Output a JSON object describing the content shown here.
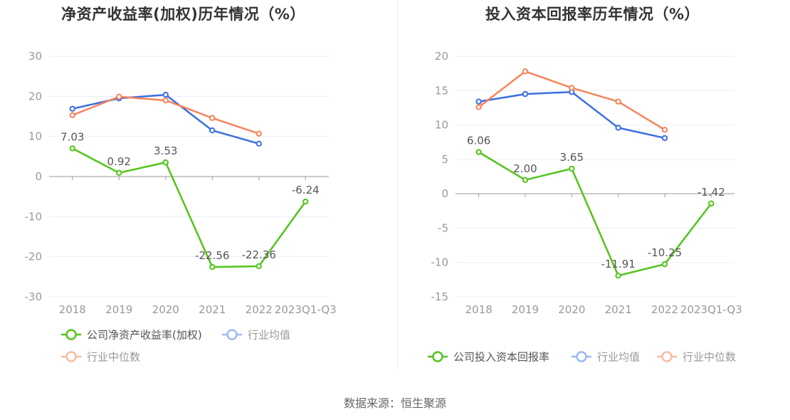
{
  "source_label": "数据来源：恒生聚源",
  "colors": {
    "company": "#52c41a",
    "industry_avg": "#3a6fe0",
    "industry_median": "#f5845a",
    "legend_avg_faded": "#9bb8f3",
    "legend_median_faded": "#f9bba3",
    "axis_text": "#999999",
    "grid": "#e8edf6",
    "axis_line": "#999999"
  },
  "chart_data": [
    {
      "type": "line",
      "title": "净资产收益率(加权)历年情况（%）",
      "categories": [
        "2018",
        "2019",
        "2020",
        "2021",
        "2022",
        "2023Q1-Q3"
      ],
      "ylim": [
        -30,
        30
      ],
      "yticks": [
        30,
        20,
        10,
        0,
        -10,
        -20,
        -30
      ],
      "grid": true,
      "legend_placement": "bottom",
      "series": [
        {
          "name": "公司净资产收益率(加权)",
          "key": "company",
          "values": [
            7.03,
            0.92,
            3.53,
            -22.56,
            -22.36,
            -6.24
          ],
          "labels": [
            "7.03",
            "0.92",
            "3.53",
            "-22.56",
            "-22.36",
            "-6.24"
          ]
        },
        {
          "name": "行业均值",
          "key": "industry_avg",
          "values": [
            16.9,
            19.5,
            20.4,
            11.5,
            8.2,
            null
          ]
        },
        {
          "name": "行业中位数",
          "key": "industry_median",
          "values": [
            15.3,
            19.9,
            19.0,
            14.6,
            10.7,
            null
          ]
        }
      ]
    },
    {
      "type": "line",
      "title": "投入资本回报率历年情况（%）",
      "categories": [
        "2018",
        "2019",
        "2020",
        "2021",
        "2022",
        "2023Q1-Q3"
      ],
      "ylim": [
        -15,
        20
      ],
      "yticks": [
        20,
        15,
        10,
        5,
        0,
        -5,
        -10,
        -15
      ],
      "grid": true,
      "legend_placement": "bottom",
      "series": [
        {
          "name": "公司投入资本回报率",
          "key": "company",
          "values": [
            6.06,
            2.0,
            3.65,
            -11.91,
            -10.25,
            -1.42
          ],
          "labels": [
            "6.06",
            "2.00",
            "3.65",
            "-11.91",
            "-10.25",
            "-1.42"
          ]
        },
        {
          "name": "行业均值",
          "key": "industry_avg",
          "values": [
            13.4,
            14.5,
            14.8,
            9.6,
            8.1,
            null
          ]
        },
        {
          "name": "行业中位数",
          "key": "industry_median",
          "values": [
            12.6,
            17.8,
            15.4,
            13.4,
            9.3,
            null
          ]
        }
      ]
    }
  ]
}
